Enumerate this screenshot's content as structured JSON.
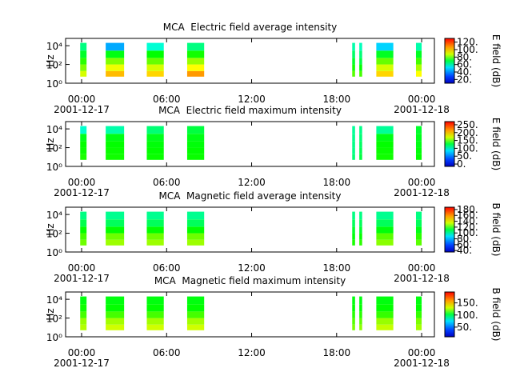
{
  "chart_data": [
    {
      "type": "spectrogram",
      "title": "MCA  Electric field average intensity",
      "ylabel": "Hz",
      "colorbar_label": "E field (dB)",
      "xlim": [
        -1.13,
        24.9
      ],
      "xticks": [
        {
          "value": 0,
          "label": "00:00"
        },
        {
          "value": 6,
          "label": "06:00"
        },
        {
          "value": 12,
          "label": "12:00"
        },
        {
          "value": 18,
          "label": "18:00"
        },
        {
          "value": 24,
          "label": "00:00"
        }
      ],
      "xtick_dates": [
        "2001-12-17",
        null,
        null,
        null,
        "2001-12-18"
      ],
      "log_y": true,
      "ylim": [
        1,
        60000
      ],
      "yticks": [
        {
          "value": 1,
          "label": "10⁰"
        },
        {
          "value": 100,
          "label": "10²"
        },
        {
          "value": 10000,
          "label": "10⁴"
        }
      ],
      "time_blocks": [
        [
          -0.1,
          0.35
        ],
        [
          1.7,
          3.0
        ],
        [
          4.6,
          5.8
        ],
        [
          7.45,
          8.65
        ],
        [
          19.1,
          19.3
        ],
        [
          19.6,
          19.8
        ],
        [
          20.8,
          22.0
        ],
        [
          23.6,
          24.0
        ]
      ],
      "freq_bins": [
        5,
        20,
        100,
        500,
        3000,
        20000
      ],
      "values": [
        [
          95,
          85,
          75,
          65,
          55
        ],
        [
          108,
          98,
          85,
          68,
          30
        ],
        [
          105,
          95,
          82,
          70,
          45
        ],
        [
          112,
          100,
          88,
          72,
          55
        ],
        [
          80,
          72,
          65,
          58,
          50
        ],
        [
          78,
          70,
          62,
          56,
          48
        ],
        [
          105,
          95,
          82,
          66,
          35
        ],
        [
          100,
          90,
          78,
          66,
          50
        ]
      ],
      "clim": [
        10,
        130
      ],
      "cticks": [
        {
          "value": 20,
          "label": "20."
        },
        {
          "value": 40,
          "label": "40."
        },
        {
          "value": 60,
          "label": "60."
        },
        {
          "value": 80,
          "label": "80."
        },
        {
          "value": 100,
          "label": "100."
        },
        {
          "value": 120,
          "label": "120."
        }
      ]
    },
    {
      "type": "spectrogram",
      "title": "MCA  Electric field maximum intensity",
      "ylabel": "Hz",
      "colorbar_label": "E field (dB)",
      "xlim": [
        -1.13,
        24.9
      ],
      "xticks": [
        {
          "value": 0,
          "label": "00:00"
        },
        {
          "value": 6,
          "label": "06:00"
        },
        {
          "value": 12,
          "label": "12:00"
        },
        {
          "value": 18,
          "label": "18:00"
        },
        {
          "value": 24,
          "label": "00:00"
        }
      ],
      "xtick_dates": [
        "2001-12-17",
        null,
        null,
        null,
        "2001-12-18"
      ],
      "log_y": true,
      "ylim": [
        1,
        60000
      ],
      "yticks": [
        {
          "value": 1,
          "label": "10⁰"
        },
        {
          "value": 100,
          "label": "10²"
        },
        {
          "value": 10000,
          "label": "10⁴"
        }
      ],
      "time_blocks": [
        [
          -0.1,
          0.35
        ],
        [
          1.7,
          3.0
        ],
        [
          4.6,
          5.8
        ],
        [
          7.45,
          8.65
        ],
        [
          19.1,
          19.3
        ],
        [
          19.6,
          19.8
        ],
        [
          20.8,
          22.0
        ],
        [
          23.6,
          24.0
        ]
      ],
      "freq_bins": [
        5,
        20,
        100,
        500,
        3000,
        20000
      ],
      "values": [
        [
          135,
          130,
          128,
          120,
          70
        ],
        [
          132,
          130,
          128,
          122,
          80
        ],
        [
          130,
          128,
          125,
          120,
          95
        ],
        [
          130,
          128,
          125,
          122,
          110
        ],
        [
          95,
          90,
          90,
          88,
          85
        ],
        [
          110,
          105,
          100,
          95,
          90
        ],
        [
          132,
          130,
          128,
          122,
          85
        ],
        [
          128,
          125,
          122,
          120,
          115
        ]
      ],
      "clim": [
        -15,
        270
      ],
      "cticks": [
        {
          "value": 0,
          "label": "0."
        },
        {
          "value": 50,
          "label": "50."
        },
        {
          "value": 100,
          "label": "100."
        },
        {
          "value": 150,
          "label": "150."
        },
        {
          "value": 200,
          "label": "200."
        },
        {
          "value": 250,
          "label": "250."
        }
      ]
    },
    {
      "type": "spectrogram",
      "title": "MCA  Magnetic field average intensity",
      "ylabel": "Hz",
      "colorbar_label": "B field (dB)",
      "xlim": [
        -1.13,
        24.9
      ],
      "xticks": [
        {
          "value": 0,
          "label": "00:00"
        },
        {
          "value": 6,
          "label": "06:00"
        },
        {
          "value": 12,
          "label": "12:00"
        },
        {
          "value": 18,
          "label": "18:00"
        },
        {
          "value": 24,
          "label": "00:00"
        }
      ],
      "xtick_dates": [
        "2001-12-17",
        null,
        null,
        null,
        "2001-12-18"
      ],
      "log_y": true,
      "ylim": [
        1,
        60000
      ],
      "yticks": [
        {
          "value": 1,
          "label": "10⁰"
        },
        {
          "value": 100,
          "label": "10²"
        },
        {
          "value": 10000,
          "label": "10⁴"
        }
      ],
      "time_blocks": [
        [
          -0.1,
          0.35
        ],
        [
          1.7,
          3.0
        ],
        [
          4.6,
          5.8
        ],
        [
          7.45,
          8.65
        ],
        [
          19.1,
          19.3
        ],
        [
          19.6,
          19.8
        ],
        [
          20.8,
          22.0
        ],
        [
          23.6,
          24.0
        ]
      ],
      "freq_bins": [
        5,
        20,
        100,
        500,
        3000,
        20000
      ],
      "values": [
        [
          128,
          122,
          112,
          100,
          92
        ],
        [
          135,
          128,
          112,
          98,
          90
        ],
        [
          135,
          128,
          112,
          98,
          90
        ],
        [
          135,
          128,
          112,
          98,
          90
        ],
        [
          115,
          110,
          105,
          98,
          92
        ],
        [
          118,
          112,
          105,
          98,
          92
        ],
        [
          132,
          125,
          110,
          98,
          90
        ],
        [
          125,
          118,
          108,
          98,
          92
        ]
      ],
      "clim": [
        35,
        188
      ],
      "cticks": [
        {
          "value": 40,
          "label": "40."
        },
        {
          "value": 60,
          "label": "60."
        },
        {
          "value": 80,
          "label": "80."
        },
        {
          "value": 100,
          "label": "100."
        },
        {
          "value": 120,
          "label": "120."
        },
        {
          "value": 140,
          "label": "140."
        },
        {
          "value": 160,
          "label": "160."
        },
        {
          "value": 180,
          "label": "180."
        }
      ]
    },
    {
      "type": "spectrogram",
      "title": "MCA  Magnetic field maximum intensity",
      "ylabel": "Hz",
      "colorbar_label": "B field (dB)",
      "xlim": [
        -1.13,
        24.9
      ],
      "xticks": [
        {
          "value": 0,
          "label": "00:00"
        },
        {
          "value": 6,
          "label": "06:00"
        },
        {
          "value": 12,
          "label": "12:00"
        },
        {
          "value": 18,
          "label": "18:00"
        },
        {
          "value": 24,
          "label": "00:00"
        }
      ],
      "xtick_dates": [
        "2001-12-17",
        null,
        null,
        null,
        "2001-12-18"
      ],
      "log_y": true,
      "ylim": [
        1,
        60000
      ],
      "yticks": [
        {
          "value": 1,
          "label": "10⁰"
        },
        {
          "value": 100,
          "label": "10²"
        },
        {
          "value": 10000,
          "label": "10⁴"
        }
      ],
      "time_blocks": [
        [
          -0.1,
          0.35
        ],
        [
          1.7,
          3.0
        ],
        [
          4.6,
          5.8
        ],
        [
          7.45,
          8.65
        ],
        [
          19.1,
          19.3
        ],
        [
          19.6,
          19.8
        ],
        [
          20.8,
          22.0
        ],
        [
          23.6,
          24.0
        ]
      ],
      "freq_bins": [
        5,
        20,
        100,
        500,
        3000,
        20000
      ],
      "values": [
        [
          135,
          130,
          115,
          105,
          100
        ],
        [
          140,
          132,
          115,
          103,
          100
        ],
        [
          140,
          132,
          115,
          103,
          100
        ],
        [
          140,
          132,
          115,
          103,
          100
        ],
        [
          125,
          118,
          110,
          103,
          100
        ],
        [
          128,
          120,
          110,
          103,
          100
        ],
        [
          138,
          130,
          112,
          103,
          100
        ],
        [
          132,
          125,
          112,
          103,
          100
        ]
      ],
      "clim": [
        10,
        195
      ],
      "cticks": [
        {
          "value": 50,
          "label": "50."
        },
        {
          "value": 100,
          "label": "100."
        },
        {
          "value": 150,
          "label": "150."
        }
      ]
    }
  ]
}
